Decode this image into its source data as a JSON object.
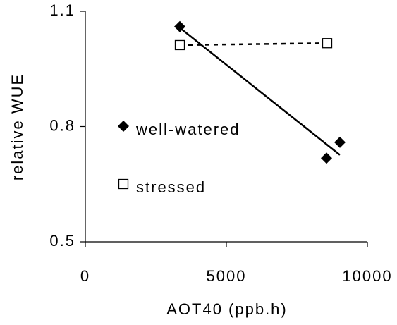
{
  "chart_data": {
    "type": "scatter",
    "x_label": "AOT40 (ppb.h)",
    "y_label": "relative WUE",
    "xlim": [
      0,
      10000
    ],
    "xticks": [
      0,
      5000,
      10000
    ],
    "ylim": [
      0.5,
      1.1
    ],
    "yticks": [
      0.5,
      0.8,
      1.1
    ],
    "legend": "left",
    "series": [
      {
        "name": "well-watered",
        "color": "#000000",
        "marker": "diamond",
        "trendline": "solid",
        "x": [
          3350,
          8550,
          9025
        ],
        "values": [
          1.06,
          0.718,
          0.759
        ]
      },
      {
        "name": "stressed",
        "color": "#000000",
        "marker": "square",
        "trendline": "dashed",
        "x": [
          3350,
          8575
        ],
        "values": [
          1.012,
          1.017
        ]
      }
    ]
  }
}
